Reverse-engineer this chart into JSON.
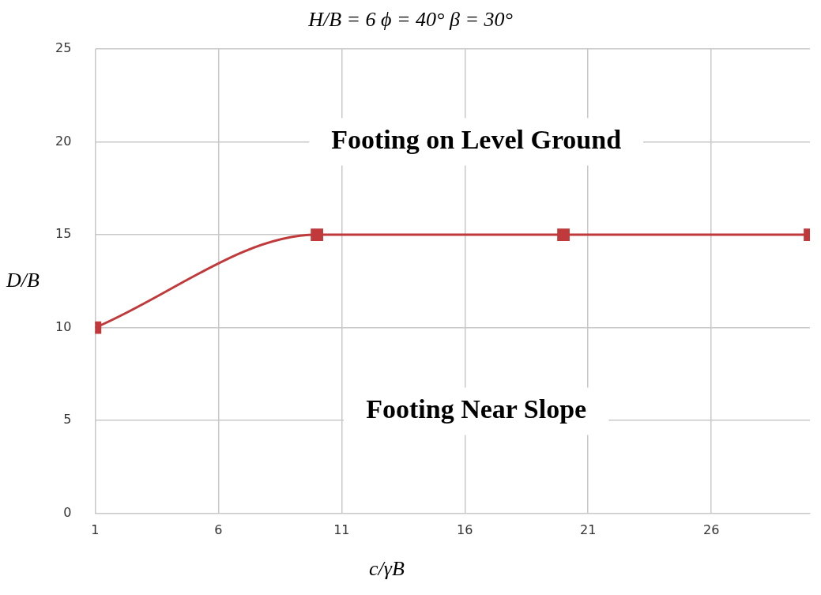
{
  "chart_data": {
    "type": "line",
    "title": "H/B = 6  ϕ = 40°  β = 30°",
    "xlabel": "c/γB",
    "ylabel": "D/B",
    "x": [
      1,
      10,
      20,
      30
    ],
    "series": [
      {
        "color": "#c0393b",
        "values": [
          10,
          15,
          15,
          15
        ]
      }
    ],
    "xlim": [
      1,
      30
    ],
    "xticks": [
      1,
      6,
      11,
      16,
      21,
      26
    ],
    "ylim": [
      0,
      25
    ],
    "yticks": [
      0,
      5,
      10,
      15,
      20,
      25
    ],
    "grid": true,
    "legend": false,
    "marker": "square",
    "line_style": "solid",
    "annotations": [
      "Footing on Level Ground",
      "Footing Near Slope"
    ]
  }
}
